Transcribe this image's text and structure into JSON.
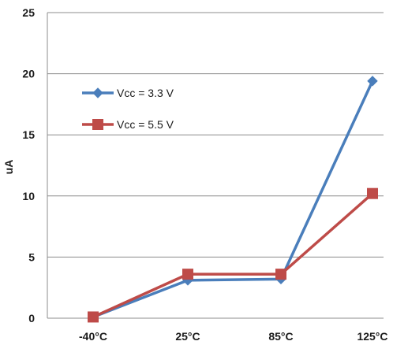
{
  "chart_data": {
    "type": "line",
    "title": "",
    "xlabel": "",
    "ylabel": "uA",
    "categories": [
      "-40°C",
      "25°C",
      "85°C",
      "125°C"
    ],
    "yticks": [
      0,
      5,
      10,
      15,
      20,
      25
    ],
    "ylim": [
      0,
      25
    ],
    "grid": true,
    "legend_placement": "upper-left",
    "series": [
      {
        "name": "Vcc = 3.3 V",
        "values": [
          0.1,
          3.1,
          3.2,
          19.4
        ],
        "color": "#4a7ebb",
        "marker": "diamond"
      },
      {
        "name": "Vcc = 5.5 V",
        "values": [
          0.1,
          3.6,
          3.6,
          10.2
        ],
        "color": "#be4b48",
        "marker": "square"
      }
    ]
  }
}
